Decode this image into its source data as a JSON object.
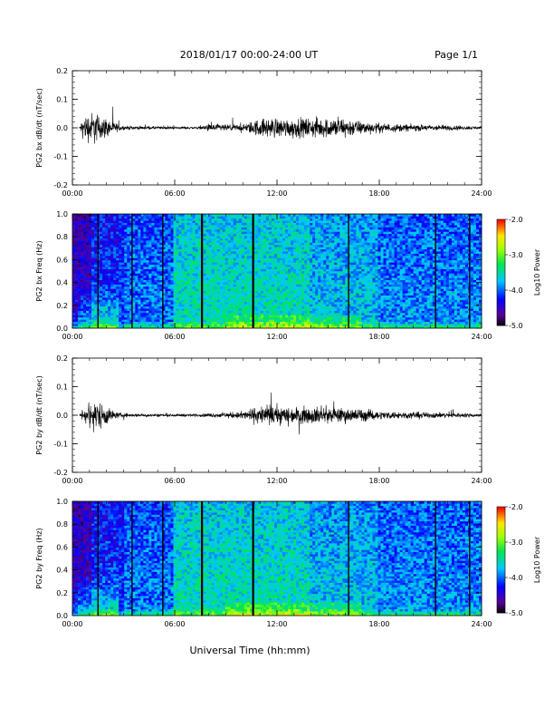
{
  "header": {
    "title": "2018/01/17  00:00-24:00 UT",
    "page": "Page 1/1"
  },
  "footer": {
    "xlabel": "Universal Time (hh:mm)"
  },
  "chart_data": [
    {
      "type": "line",
      "ylabel": "PG2 bx dB/dt (nT/sec)",
      "xlim": [
        "00:00",
        "24:00"
      ],
      "ylim": [
        -0.2,
        0.2
      ],
      "xticks": [
        "00:00",
        "06:00",
        "12:00",
        "18:00",
        "24:00"
      ],
      "yticks": [
        "0.2",
        "0.1",
        "0.0",
        "-0.1",
        "-0.2"
      ],
      "envelope": {
        "hours": [
          0.4,
          0.6,
          1.0,
          1.3,
          1.6,
          2.0,
          2.5,
          3.0,
          4.0,
          6.0,
          7.5,
          8.0,
          9.0,
          10.0,
          10.8,
          11.5,
          13.0,
          14.5,
          16.0,
          17.0,
          18.0,
          20.0,
          22.0,
          23.5,
          24.0
        ],
        "amplitude": [
          0.0,
          0.03,
          0.045,
          0.05,
          0.035,
          0.03,
          0.015,
          0.006,
          0.005,
          0.004,
          0.004,
          0.012,
          0.01,
          0.01,
          0.025,
          0.03,
          0.028,
          0.03,
          0.03,
          0.02,
          0.014,
          0.01,
          0.008,
          0.005,
          0.004
        ]
      }
    },
    {
      "type": "heatmap",
      "ylabel": "PG2 bx Freq (Hz)",
      "xlim": [
        "00:00",
        "24:00"
      ],
      "ylim": [
        0.0,
        1.0
      ],
      "xticks": [
        "00:00",
        "06:00",
        "12:00",
        "18:00",
        "24:00"
      ],
      "yticks": [
        "1.0",
        "0.8",
        "0.6",
        "0.4",
        "0.2",
        "0.0"
      ],
      "colorbar": {
        "label": "Log10 Power",
        "ticks": [
          "-2.0",
          "-3.0",
          "-4.0",
          "-5.0"
        ],
        "range": [
          -5.0,
          -2.0
        ]
      },
      "gap_hours": [
        1.5,
        3.5,
        5.3,
        7.6,
        10.6,
        16.2,
        21.3,
        23.3
      ]
    },
    {
      "type": "line",
      "ylabel": "PG2 by dB/dt (nT/sec)",
      "xlim": [
        "00:00",
        "24:00"
      ],
      "ylim": [
        -0.2,
        0.2
      ],
      "xticks": [
        "00:00",
        "06:00",
        "12:00",
        "18:00",
        "24:00"
      ],
      "yticks": [
        "0.2",
        "0.1",
        "0.0",
        "-0.1",
        "-0.2"
      ],
      "envelope": {
        "hours": [
          0.4,
          0.6,
          1.0,
          1.3,
          1.6,
          2.0,
          2.5,
          3.0,
          4.0,
          6.0,
          7.5,
          8.0,
          9.0,
          10.0,
          10.8,
          11.5,
          13.0,
          14.5,
          16.0,
          17.0,
          18.0,
          20.0,
          22.0,
          23.5,
          24.0
        ],
        "amplitude": [
          0.0,
          0.02,
          0.03,
          0.045,
          0.04,
          0.03,
          0.01,
          0.006,
          0.005,
          0.004,
          0.004,
          0.006,
          0.008,
          0.012,
          0.025,
          0.03,
          0.025,
          0.025,
          0.022,
          0.02,
          0.012,
          0.01,
          0.008,
          0.006,
          0.004
        ]
      }
    },
    {
      "type": "heatmap",
      "ylabel": "PG2 by Freq (Hz)",
      "xlim": [
        "00:00",
        "24:00"
      ],
      "ylim": [
        0.0,
        1.0
      ],
      "xticks": [
        "00:00",
        "06:00",
        "12:00",
        "18:00",
        "24:00"
      ],
      "yticks": [
        "1.0",
        "0.8",
        "0.6",
        "0.4",
        "0.2",
        "0.0"
      ],
      "colorbar": {
        "label": "Log10 Power",
        "ticks": [
          "-2.0",
          "-3.0",
          "-4.0",
          "-5.0"
        ],
        "range": [
          -5.0,
          -2.0
        ]
      },
      "gap_hours": [
        1.5,
        3.5,
        5.3,
        7.6,
        10.6,
        16.2,
        21.3,
        23.3
      ]
    }
  ]
}
